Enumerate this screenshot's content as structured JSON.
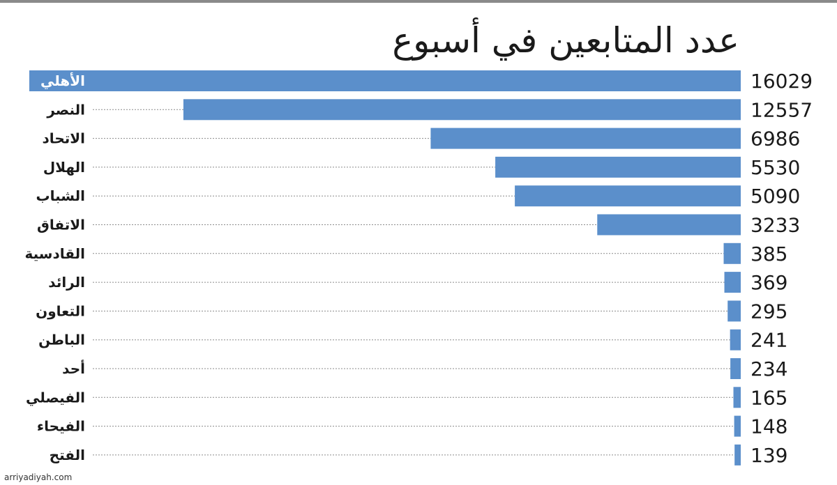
{
  "chart_data": {
    "type": "bar",
    "orientation": "horizontal",
    "title": "عدد المتابعين في أسبوع",
    "categories": [
      "الأهلي",
      "النصر",
      "الاتحاد",
      "الهلال",
      "الشباب",
      "الاتفاق",
      "القادسية",
      "الرائد",
      "التعاون",
      "الباطن",
      "أحد",
      "الفيصلي",
      "الفيحاء",
      "الفتح"
    ],
    "values": [
      16029,
      12557,
      6986,
      5530,
      5090,
      3233,
      385,
      369,
      295,
      241,
      234,
      165,
      148,
      139
    ],
    "highlight_category": "الأهلي",
    "bar_color": "#5b8fcb",
    "leader_line_color": "#8a8a8a",
    "grid": false,
    "legend": "none"
  },
  "source_text": "arriyadiyah.com"
}
